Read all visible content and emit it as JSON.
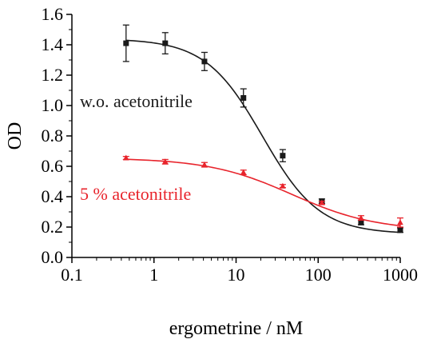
{
  "chart_data": {
    "type": "scatter",
    "xlabel": "ergometrine / nM",
    "ylabel": "OD",
    "xscale": "log",
    "xlim": [
      0.1,
      1000
    ],
    "ylim": [
      0.0,
      1.6
    ],
    "x_ticks": [
      0.1,
      1,
      10,
      100,
      1000
    ],
    "x_tick_labels": [
      "0.1",
      "1",
      "10",
      "100",
      "1000"
    ],
    "y_ticks": [
      0.0,
      0.2,
      0.4,
      0.6,
      0.8,
      1.0,
      1.2,
      1.4,
      1.6
    ],
    "y_tick_labels": [
      "0.0",
      "0.2",
      "0.4",
      "0.6",
      "0.8",
      "1.0",
      "1.2",
      "1.4",
      "1.6"
    ],
    "grid": false,
    "series": [
      {
        "name": "w.o. acetonitrile",
        "color": "#1a1a1a",
        "marker": "square",
        "x": [
          0.457,
          1.37,
          4.12,
          12.3,
          37.0,
          111,
          333,
          1000
        ],
        "y": [
          1.41,
          1.41,
          1.29,
          1.05,
          0.67,
          0.37,
          0.23,
          0.18
        ],
        "error": [
          0.12,
          0.07,
          0.06,
          0.06,
          0.04,
          0.015,
          0.015,
          0.015
        ],
        "fit": {
          "top": 1.44,
          "bottom": 0.155,
          "ec50": 21.0,
          "hill": 1.25
        }
      },
      {
        "name": "5 % acetonitrile",
        "color": "#e8242c",
        "marker": "triangle",
        "x": [
          0.457,
          1.37,
          4.12,
          12.3,
          37.0,
          111,
          333,
          1000
        ],
        "y": [
          0.655,
          0.63,
          0.61,
          0.56,
          0.47,
          0.36,
          0.26,
          0.23
        ],
        "error": [
          0.01,
          0.015,
          0.015,
          0.015,
          0.01,
          0.01,
          0.015,
          0.03
        ],
        "fit": {
          "top": 0.655,
          "bottom": 0.175,
          "ec50": 48.0,
          "hill": 0.85
        }
      }
    ]
  }
}
